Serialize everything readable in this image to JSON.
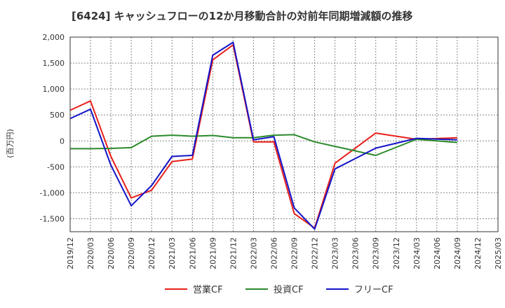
{
  "chart_data": {
    "type": "line",
    "title": "[6424]  キャッシュフローの12か月移動合計の対前年同期増減額の推移",
    "ylabel": "(百万円)",
    "xlabel": "",
    "ylim": [
      -1750,
      2000
    ],
    "yticks": [
      2000,
      1500,
      1000,
      500,
      0,
      -500,
      -1000,
      -1500
    ],
    "ytick_labels": [
      "2,000",
      "1,500",
      "1,000",
      "500",
      "0",
      "-500",
      "-1,000",
      "-1,500"
    ],
    "categories": [
      "2019/12",
      "2020/03",
      "2020/06",
      "2020/09",
      "2020/12",
      "2021/03",
      "2021/06",
      "2021/09",
      "2021/12",
      "2022/03",
      "2022/06",
      "2022/09",
      "2022/12",
      "2023/03",
      "2023/06",
      "2023/09",
      "2023/12",
      "2024/03",
      "2024/06",
      "2024/09",
      "2024/12",
      "2025/03"
    ],
    "grid": true,
    "legend_position": "bottom",
    "series": [
      {
        "name": "営業CF",
        "color": "#e8201a",
        "values": [
          590,
          770,
          -300,
          -1100,
          -950,
          -400,
          -350,
          1560,
          1850,
          -20,
          -20,
          -1400,
          -1680,
          -430,
          null,
          150,
          null,
          30,
          null,
          60,
          null,
          null
        ]
      },
      {
        "name": "投資CF",
        "color": "#2a8a2a",
        "values": [
          -150,
          -150,
          -145,
          -130,
          90,
          110,
          90,
          105,
          60,
          60,
          110,
          120,
          -20,
          null,
          null,
          -280,
          null,
          30,
          null,
          -30,
          null,
          null
        ]
      },
      {
        "name": "フリーCF",
        "color": "#1414c8",
        "values": [
          430,
          610,
          -470,
          -1250,
          -860,
          -300,
          -280,
          1650,
          1900,
          20,
          80,
          -1290,
          -1700,
          -540,
          null,
          -140,
          null,
          50,
          null,
          20,
          null,
          null
        ]
      }
    ]
  }
}
